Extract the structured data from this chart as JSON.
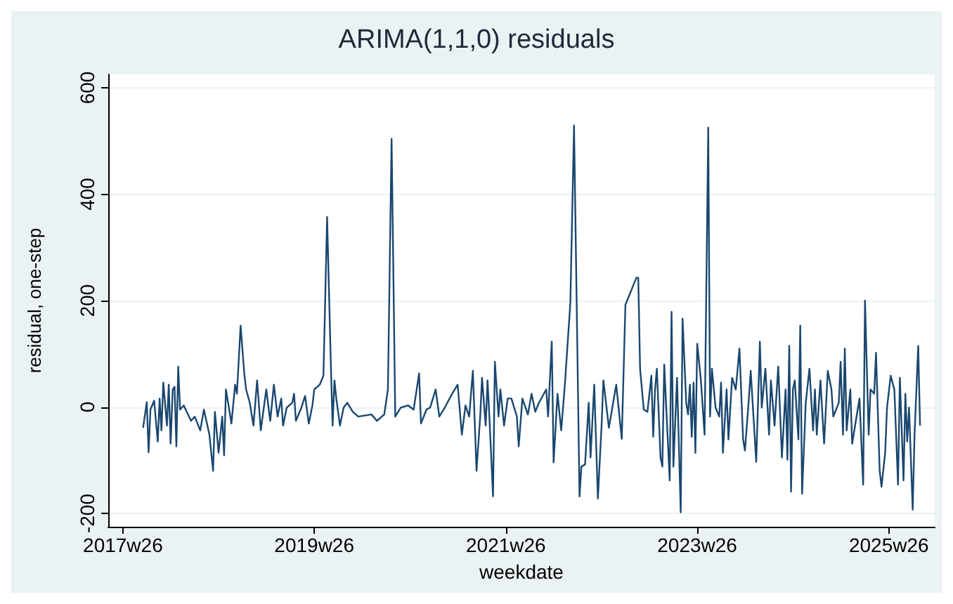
{
  "chart_data": {
    "type": "line",
    "title": "ARIMA(1,1,0) residuals",
    "xlabel": "weekdate",
    "ylabel": "residual, one-step",
    "color": "#1a476f",
    "grid": "y",
    "marker": "none",
    "line_style": "solid",
    "xlim": [
      "2017-04-30",
      "2025-12-17"
    ],
    "ylim": [
      -225,
      625
    ],
    "xticks": [
      {
        "value": "2017-06-25",
        "label": "2017w26"
      },
      {
        "value": "2019-06-25",
        "label": "2019w26"
      },
      {
        "value": "2021-06-25",
        "label": "2021w26"
      },
      {
        "value": "2023-06-25",
        "label": "2023w26"
      },
      {
        "value": "2025-06-25",
        "label": "2025w26"
      }
    ],
    "yticks": [
      -200,
      0,
      200,
      400,
      600
    ],
    "x": [
      "2017-09-10",
      "2017-09-24",
      "2017-10-01",
      "2017-10-08",
      "2017-10-22",
      "2017-11-05",
      "2017-11-12",
      "2017-11-19",
      "2017-11-26",
      "2017-12-10",
      "2017-12-17",
      "2017-12-24",
      "2018-01-01",
      "2018-01-08",
      "2018-01-15",
      "2018-01-22",
      "2018-01-29",
      "2018-02-12",
      "2018-03-12",
      "2018-03-26",
      "2018-04-16",
      "2018-04-30",
      "2018-05-21",
      "2018-06-04",
      "2018-06-11",
      "2018-06-25",
      "2018-07-09",
      "2018-07-16",
      "2018-07-23",
      "2018-08-06",
      "2018-08-13",
      "2018-08-27",
      "2018-09-03",
      "2018-09-17",
      "2018-10-01",
      "2018-10-08",
      "2018-10-22",
      "2018-11-05",
      "2018-11-19",
      "2018-12-03",
      "2018-12-17",
      "2018-12-24",
      "2019-01-08",
      "2019-01-22",
      "2019-02-05",
      "2019-02-19",
      "2019-02-26",
      "2019-03-12",
      "2019-04-02",
      "2019-04-09",
      "2019-04-16",
      "2019-05-07",
      "2019-05-21",
      "2019-06-04",
      "2019-06-18",
      "2019-06-25",
      "2019-07-16",
      "2019-07-30",
      "2019-08-13",
      "2019-08-27",
      "2019-09-03",
      "2019-09-10",
      "2019-09-17",
      "2019-10-01",
      "2019-10-15",
      "2019-10-29",
      "2019-11-19",
      "2019-12-10",
      "2020-01-29",
      "2020-02-19",
      "2020-03-18",
      "2020-04-01",
      "2020-04-15",
      "2020-04-29",
      "2020-05-20",
      "2020-06-17",
      "2020-07-08",
      "2020-07-29",
      "2020-08-05",
      "2020-08-26",
      "2020-09-09",
      "2020-09-30",
      "2020-10-14",
      "2020-11-04",
      "2020-12-02",
      "2020-12-23",
      "2021-01-08",
      "2021-01-22",
      "2021-02-05",
      "2021-02-19",
      "2021-03-05",
      "2021-03-19",
      "2021-03-26",
      "2021-04-09",
      "2021-04-16",
      "2021-04-23",
      "2021-05-07",
      "2021-05-14",
      "2021-05-28",
      "2021-06-04",
      "2021-06-18",
      "2021-07-02",
      "2021-07-16",
      "2021-08-06",
      "2021-08-13",
      "2021-08-27",
      "2021-09-17",
      "2021-10-01",
      "2021-10-15",
      "2021-10-29",
      "2021-11-26",
      "2021-12-03",
      "2021-12-17",
      "2021-12-24",
      "2022-01-08",
      "2022-01-22",
      "2022-02-05",
      "2022-02-26",
      "2022-03-12",
      "2022-04-02",
      "2022-04-09",
      "2022-04-23",
      "2022-05-07",
      "2022-05-14",
      "2022-05-28",
      "2022-06-11",
      "2022-06-25",
      "2022-07-02",
      "2022-07-23",
      "2022-08-20",
      "2022-09-10",
      "2022-09-24",
      "2022-11-05",
      "2022-11-12",
      "2022-11-19",
      "2022-12-03",
      "2022-12-17",
      "2023-01-01",
      "2023-01-08",
      "2023-01-15",
      "2023-01-22",
      "2023-02-05",
      "2023-02-12",
      "2023-02-19",
      "2023-03-12",
      "2023-03-19",
      "2023-03-26",
      "2023-04-09",
      "2023-04-23",
      "2023-04-30",
      "2023-05-14",
      "2023-05-21",
      "2023-05-28",
      "2023-06-04",
      "2023-06-11",
      "2023-06-18",
      "2023-06-25",
      "2023-07-09",
      "2023-07-23",
      "2023-08-06",
      "2023-08-13",
      "2023-08-20",
      "2023-09-03",
      "2023-09-17",
      "2023-09-24",
      "2023-10-01",
      "2023-10-15",
      "2023-10-22",
      "2023-11-05",
      "2023-11-19",
      "2023-12-03",
      "2023-12-17",
      "2023-12-24",
      "2024-01-08",
      "2024-01-15",
      "2024-02-05",
      "2024-02-19",
      "2024-02-26",
      "2024-03-11",
      "2024-03-25",
      "2024-04-01",
      "2024-04-15",
      "2024-04-29",
      "2024-05-13",
      "2024-05-27",
      "2024-06-03",
      "2024-06-10",
      "2024-06-17",
      "2024-06-24",
      "2024-07-01",
      "2024-07-15",
      "2024-07-22",
      "2024-07-29",
      "2024-08-12",
      "2024-08-26",
      "2024-09-09",
      "2024-09-16",
      "2024-09-23",
      "2024-10-07",
      "2024-10-21",
      "2024-11-04",
      "2024-11-18",
      "2024-11-25",
      "2024-12-16",
      "2024-12-23",
      "2025-01-01",
      "2025-01-08",
      "2025-01-15",
      "2025-01-29",
      "2025-02-05",
      "2025-02-19",
      "2025-03-05",
      "2025-03-19",
      "2025-03-26",
      "2025-04-09",
      "2025-04-16",
      "2025-04-30",
      "2025-05-07",
      "2025-05-21",
      "2025-05-28",
      "2025-06-11",
      "2025-06-18",
      "2025-07-02",
      "2025-07-16",
      "2025-07-30",
      "2025-08-06",
      "2025-08-20",
      "2025-08-27",
      "2025-09-03",
      "2025-09-10",
      "2025-09-24",
      "2025-10-01",
      "2025-10-15",
      "2025-10-22"
    ],
    "values": [
      -39,
      9,
      -85,
      -5,
      12,
      -65,
      16,
      -44,
      46,
      -35,
      42,
      -69,
      33,
      38,
      -74,
      76,
      -5,
      3,
      -26,
      -18,
      -44,
      -5,
      -52,
      -120,
      -9,
      -86,
      -18,
      -91,
      33,
      -9,
      -31,
      42,
      25,
      153,
      63,
      33,
      8,
      -35,
      50,
      -44,
      8,
      33,
      -26,
      42,
      -18,
      16,
      -35,
      -1,
      8,
      25,
      -26,
      -1,
      21,
      -31,
      3,
      33,
      42,
      59,
      357,
      85,
      -35,
      50,
      16,
      -35,
      -1,
      8,
      -9,
      -18,
      -14,
      -26,
      -14,
      33,
      504,
      -18,
      -1,
      3,
      -5,
      63,
      -31,
      -5,
      -1,
      33,
      -18,
      -1,
      25,
      42,
      -52,
      3,
      -18,
      68,
      -120,
      -18,
      55,
      -35,
      50,
      -18,
      -168,
      85,
      -18,
      33,
      -35,
      16,
      16,
      -18,
      -74,
      16,
      -14,
      25,
      -9,
      8,
      33,
      -18,
      123,
      -104,
      25,
      -44,
      42,
      196,
      529,
      -168,
      -112,
      -108,
      8,
      -95,
      42,
      -172,
      -35,
      50,
      -39,
      42,
      -60,
      192,
      243,
      243,
      72,
      -5,
      -9,
      59,
      -56,
      33,
      72,
      -95,
      -112,
      80,
      -138,
      179,
      -112,
      55,
      -198,
      166,
      8,
      -14,
      42,
      -56,
      46,
      -86,
      119,
      50,
      -52,
      525,
      -18,
      72,
      -1,
      -18,
      46,
      -86,
      33,
      -61,
      55,
      33,
      110,
      -61,
      -82,
      16,
      68,
      -103,
      123,
      -1,
      72,
      -52,
      50,
      -35,
      76,
      -95,
      33,
      -99,
      115,
      -159,
      33,
      50,
      -61,
      153,
      -163,
      8,
      72,
      -44,
      33,
      -52,
      50,
      -69,
      68,
      33,
      -18,
      8,
      85,
      -52,
      110,
      -44,
      33,
      -69,
      -26,
      16,
      -146,
      200,
      -52,
      33,
      25,
      102,
      -120,
      -150,
      -86,
      -1,
      59,
      33,
      -146,
      55,
      -138,
      25,
      -65,
      -1,
      -193,
      -52,
      115,
      -35
    ]
  }
}
